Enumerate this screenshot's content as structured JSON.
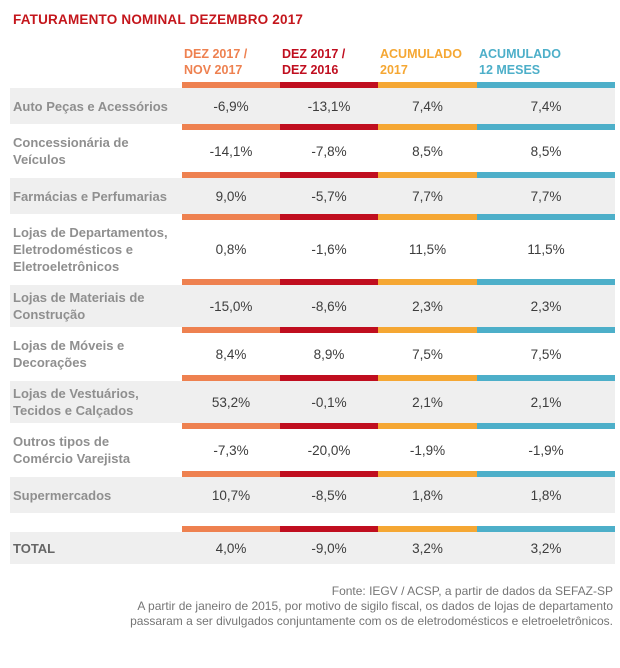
{
  "title": "FATURAMENTO NOMINAL DEZEMBRO 2017",
  "colors": {
    "title": "#C4161C",
    "col1_accent": "#EE8150",
    "col2_accent": "#C00E1F",
    "col3_accent": "#F5A733",
    "col4_accent": "#4DAFC9",
    "row_alt_background": "#EFEFEF",
    "category_text": "#8F8F8F",
    "value_text": "#3D3D3D",
    "footer_text": "#757575"
  },
  "columns": [
    {
      "label": "DEZ 2017 / NOV 2017",
      "line1": "DEZ 2017 /",
      "line2": "NOV 2017",
      "color": "#EE8150"
    },
    {
      "label": "DEZ 2017 / DEZ 2016",
      "line1": "DEZ 2017 /",
      "line2": "DEZ 2016",
      "color": "#C00E1F"
    },
    {
      "label": "ACUMULADO 2017",
      "line1": "ACUMULADO",
      "line2": "2017",
      "color": "#F5A733"
    },
    {
      "label": "ACUMULADO 12 MESES",
      "line1": "ACUMULADO",
      "line2": "12 MESES",
      "color": "#4DAFC9"
    }
  ],
  "rows": [
    {
      "label": "Auto Peças e Acessórios",
      "values": [
        "-6,9%",
        "-13,1%",
        "7,4%",
        "7,4%"
      ]
    },
    {
      "label": "Concessionária de Veículos",
      "values": [
        "-14,1%",
        "-7,8%",
        "8,5%",
        "8,5%"
      ]
    },
    {
      "label": "Farmácias e Perfumarias",
      "values": [
        "9,0%",
        "-5,7%",
        "7,7%",
        "7,7%"
      ]
    },
    {
      "label": "Lojas de Departamentos, Eletrodomésticos e Eletroeletrônicos",
      "values": [
        "0,8%",
        "-1,6%",
        "11,5%",
        "11,5%"
      ]
    },
    {
      "label": "Lojas de Materiais de Construção",
      "values": [
        "-15,0%",
        "-8,6%",
        "2,3%",
        "2,3%"
      ]
    },
    {
      "label": "Lojas de Móveis e Decorações",
      "values": [
        "8,4%",
        "8,9%",
        "7,5%",
        "7,5%"
      ]
    },
    {
      "label": "Lojas de Vestuários, Tecidos e Calçados",
      "values": [
        "53,2%",
        "-0,1%",
        "2,1%",
        "2,1%"
      ]
    },
    {
      "label": "Outros tipos de Comércio Varejista",
      "values": [
        "-7,3%",
        "-20,0%",
        "-1,9%",
        "-1,9%"
      ]
    },
    {
      "label": "Supermercados",
      "values": [
        "10,7%",
        "-8,5%",
        "1,8%",
        "1,8%"
      ]
    }
  ],
  "total": {
    "label": "TOTAL",
    "values": [
      "4,0%",
      "-9,0%",
      "3,2%",
      "3,2%"
    ]
  },
  "footer": {
    "lines": [
      "Fonte: IEGV / ACSP, a partir de dados da SEFAZ-SP",
      "A partir de janeiro de 2015, por motivo de sigilo fiscal, os dados de lojas de departamento",
      "passaram a ser divulgados conjuntamente com os de eletrodomésticos e eletroeletrônicos."
    ]
  },
  "chart_data": {
    "type": "table",
    "title": "FATURAMENTO NOMINAL DEZEMBRO 2017",
    "columns": [
      "DEZ 2017 / NOV 2017",
      "DEZ 2017 / DEZ 2016",
      "ACUMULADO 2017",
      "ACUMULADO 12 MESES"
    ],
    "categories": [
      "Auto Peças e Acessórios",
      "Concessionária de Veículos",
      "Farmácias e Perfumarias",
      "Lojas de Departamentos, Eletrodomésticos e Eletroeletrônicos",
      "Lojas de Materiais de Construção",
      "Lojas de Móveis e Decorações",
      "Lojas de Vestuários, Tecidos e Calçados",
      "Outros tipos de Comércio Varejista",
      "Supermercados",
      "TOTAL"
    ],
    "series": [
      {
        "name": "DEZ 2017 / NOV 2017",
        "values": [
          -6.9,
          -14.1,
          9.0,
          0.8,
          -15.0,
          8.4,
          53.2,
          -7.3,
          10.7,
          4.0
        ]
      },
      {
        "name": "DEZ 2017 / DEZ 2016",
        "values": [
          -13.1,
          -7.8,
          -5.7,
          -1.6,
          -8.6,
          8.9,
          -0.1,
          -20.0,
          -8.5,
          -9.0
        ]
      },
      {
        "name": "ACUMULADO 2017",
        "values": [
          7.4,
          8.5,
          7.7,
          11.5,
          2.3,
          7.5,
          2.1,
          -1.9,
          1.8,
          3.2
        ]
      },
      {
        "name": "ACUMULADO 12 MESES",
        "values": [
          7.4,
          8.5,
          7.7,
          11.5,
          2.3,
          7.5,
          2.1,
          -1.9,
          1.8,
          3.2
        ]
      }
    ],
    "units": "percent",
    "source_note": "Fonte: IEGV / ACSP, a partir de dados da SEFAZ-SP"
  }
}
